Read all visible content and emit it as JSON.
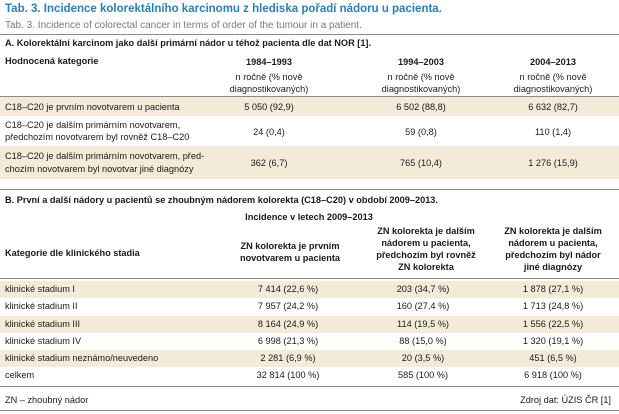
{
  "title": {
    "cz": "Tab. 3. Incidence kolorektálního karcinomu z hlediska pořadí nádoru u pacienta.",
    "en": "Tab. 3. Incidence of colorectal cancer in terms of order of the tumour in a patient."
  },
  "sectionA": {
    "heading": "A. Kolorektální karcinom jako další primární nádor u téhož pacienta dle dat NOR [1].",
    "category_header": "Hodnocená kategorie",
    "periods": [
      "1984–1993",
      "1994–2003",
      "2004–2013"
    ],
    "period_sub": [
      "n ročně (% nově diagnostikovaných)",
      "n ročně (% nově diagnostikovaných)",
      "n ročně (% nově diagnostikovaných)"
    ],
    "rows": [
      {
        "label": [
          "C18–C20 je prvním novotvarem u pacienta"
        ],
        "values": [
          "5 050 (92,9)",
          "6 502 (88,8)",
          "6 632 (82,7)"
        ]
      },
      {
        "label": [
          "C18–C20 je dalším primárním novotvarem,",
          "předchozím novotvarem byl rovněž C18–C20"
        ],
        "values": [
          "24 (0,4)",
          "59 (0,8)",
          "110 (1,4)"
        ]
      },
      {
        "label": [
          "C18–C20 je dalším primárním novotvarem, před-",
          "chozím novotvarem byl novotvar jiné diagnózy"
        ],
        "values": [
          "362 (6,7)",
          "765 (10,4)",
          "1 276 (15,9)"
        ]
      }
    ]
  },
  "sectionB": {
    "heading": "B. První a další nádory u pacientů se zhoubným nádorem kolorekta (C18–C20) v období 2009–2013.",
    "incidence_label": "Incidence v letech 2009–2013",
    "category_header": "Kategorie dle klinického stadia",
    "columns": [
      [
        "ZN kolorekta je prvním",
        "novotvarem u pacienta"
      ],
      [
        "ZN kolorekta je dalším",
        "nádorem u pacienta,",
        "předchozím byl rovněž",
        "ZN kolorekta"
      ],
      [
        "ZN kolorekta je dalším",
        "nádorem u pacienta,",
        "předchozím byl nádor",
        "jiné diagnózy"
      ]
    ],
    "rows": [
      {
        "label": "klinické stadium I",
        "values": [
          "7 414 (22,6 %)",
          "203 (34,7 %)",
          "1 878 (27,1 %)"
        ]
      },
      {
        "label": "klinické stadium II",
        "values": [
          "7 957 (24,2 %)",
          "160 (27,4 %)",
          "1 713 (24,8 %)"
        ]
      },
      {
        "label": "klinické stadium III",
        "values": [
          "8 164 (24,9 %)",
          "114 (19,5 %)",
          "1 556 (22,5 %)"
        ]
      },
      {
        "label": "klinické stadium IV",
        "values": [
          "6 998 (21,3 %)",
          "88 (15,0 %)",
          "1 320 (19,1 %)"
        ]
      },
      {
        "label": "klinické stadium neznámo/neuvedeno",
        "values": [
          "2 281 (6,9 %)",
          "20 (3,5 %)",
          "451 (6,5 %)"
        ]
      },
      {
        "label": "celkem",
        "values": [
          "32 814 (100 %)",
          "585 (100 %)",
          "6 918 (100 %)"
        ]
      }
    ]
  },
  "footer": {
    "abbrev": "ZN – zhoubný nádor",
    "source": "Zdroj dat: ÚZIS ČR [1]"
  },
  "colors": {
    "title": "#2b7fb5",
    "row_shade": "#f3ead7",
    "rule": "#8a8a8a"
  }
}
